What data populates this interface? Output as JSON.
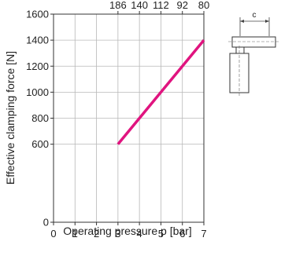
{
  "chart_data": {
    "type": "line",
    "xlabel": "Operating pressure p [bar]",
    "ylabel": "Effective clamping force [N]",
    "xlim": [
      0,
      7
    ],
    "ylim": [
      0,
      1600
    ],
    "x_ticks": [
      0,
      1,
      2,
      3,
      4,
      5,
      6,
      7
    ],
    "y_ticks": [
      0,
      600,
      800,
      1000,
      1200,
      1400,
      1600
    ],
    "x_tick_labels": [
      "0",
      "1",
      "2",
      "3",
      "4",
      "5",
      "6",
      "7"
    ],
    "y_tick_labels": [
      "0",
      "600",
      "800",
      "1000",
      "1200",
      "1400",
      "1600"
    ],
    "top_ticks": [
      {
        "x": 3,
        "label": "186"
      },
      {
        "x": 4,
        "label": "140"
      },
      {
        "x": 5,
        "label": "112"
      },
      {
        "x": 6,
        "label": "92"
      },
      {
        "x": 7,
        "label": "80"
      }
    ],
    "grid": true,
    "series": [
      {
        "color": "#e0147f",
        "points": [
          {
            "x": 3,
            "y": 600
          },
          {
            "x": 7,
            "y": 1400
          }
        ]
      }
    ]
  },
  "diagram": {
    "dimension_label": "c"
  }
}
